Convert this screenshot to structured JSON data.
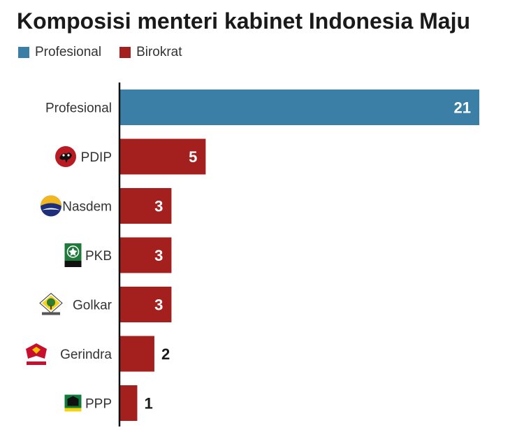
{
  "chart_data": {
    "type": "bar",
    "orientation": "horizontal",
    "title": "Komposisi menteri kabinet Indonesia Maju",
    "legend": [
      {
        "name": "Profesional",
        "color": "#3b7fa6"
      },
      {
        "name": "Birokrat",
        "color": "#a3201f"
      }
    ],
    "legend_placement": "top-left",
    "categories": [
      "Profesional",
      "PDIP",
      "Nasdem",
      "PKB",
      "Golkar",
      "Gerindra",
      "PPP"
    ],
    "values": [
      21,
      5,
      3,
      3,
      3,
      2,
      1
    ],
    "series_of_category": [
      "Profesional",
      "Birokrat",
      "Birokrat",
      "Birokrat",
      "Birokrat",
      "Birokrat",
      "Birokrat"
    ],
    "category_icons": [
      "",
      "pdip-logo-icon",
      "nasdem-logo-icon",
      "pkb-logo-icon",
      "golkar-logo-icon",
      "gerindra-logo-icon",
      "ppp-logo-icon"
    ],
    "xlim": [
      0,
      21
    ],
    "grid": false,
    "value_labels": true
  }
}
